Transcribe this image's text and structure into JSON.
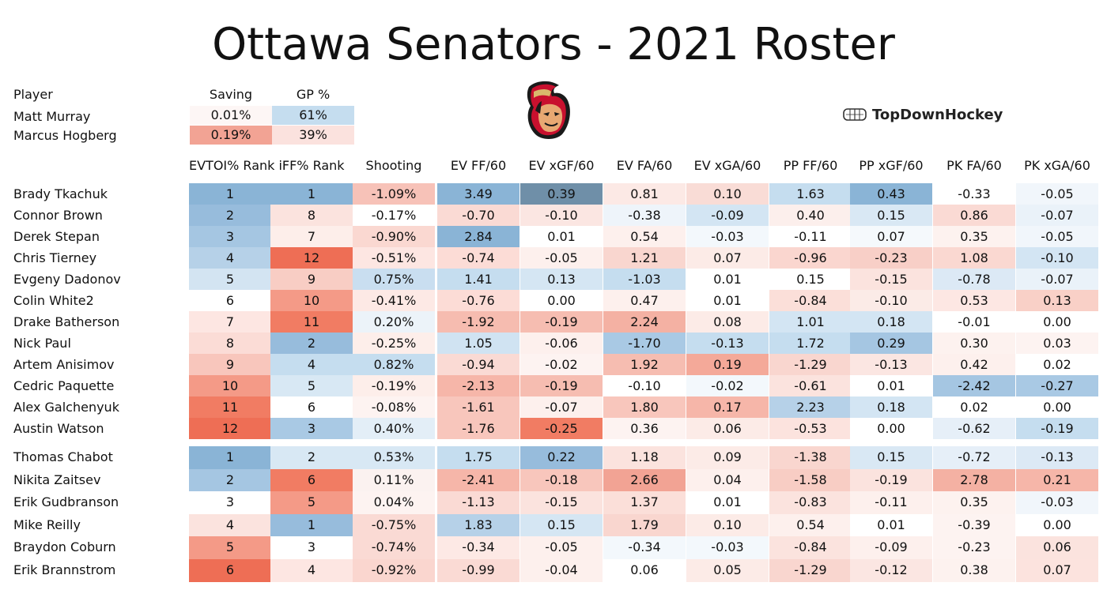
{
  "title": "Ottawa Senators - 2021 Roster",
  "brand": "TopDownHockey",
  "colors": {
    "blue": "#5b94c4",
    "red": "#ee6448",
    "white": "#ffffff"
  },
  "goalies": {
    "headers": [
      "Player",
      "Saving",
      "GP %"
    ],
    "rows": [
      {
        "name": "Matt Murray",
        "saving": "0.01%",
        "gp": "61%",
        "saving_color": "#fdf6f5",
        "gp_color": "#c5ddef"
      },
      {
        "name": "Marcus Hogberg",
        "saving": "0.19%",
        "gp": "39%",
        "saving_color": "#f2a394",
        "gp_color": "#fbe2de"
      }
    ]
  },
  "chart_data": {
    "type": "table",
    "title": "Ottawa Senators - 2021 Roster",
    "columns": [
      "EVTOI% Rank",
      "iFF% Rank",
      "Shooting",
      "EV FF/60",
      "EV xGF/60",
      "EV FA/60",
      "EV xGA/60",
      "PP FF/60",
      "PP xGF/60",
      "PK FA/60",
      "PK xGA/60"
    ],
    "forwards": [
      {
        "player": "Brady Tkachuk",
        "values": [
          "1",
          "1",
          "-1.09%",
          "3.49",
          "0.39",
          "0.81",
          "0.10",
          "1.63",
          "0.43",
          "-0.33",
          "-0.05"
        ],
        "colors": [
          "#8ab4d6",
          "#8ab4d6",
          "#f7c2b8",
          "#8ab4d6",
          "#6f8fa8",
          "#fce9e5",
          "#f9dcd6",
          "#c5ddef",
          "#8ab4d6",
          "#ffffff",
          "#f1f6fb"
        ]
      },
      {
        "player": "Connor Brown",
        "values": [
          "2",
          "8",
          "-0.17%",
          "-0.70",
          "-0.10",
          "-0.38",
          "-0.09",
          "0.40",
          "0.15",
          "0.86",
          "-0.07"
        ],
        "colors": [
          "#97bcdc",
          "#fbe3de",
          "#ffffff",
          "#fadad4",
          "#fbe6e2",
          "#eef4fa",
          "#d3e5f3",
          "#fcefec",
          "#d9e8f4",
          "#fadad4",
          "#eaf2f9"
        ]
      },
      {
        "player": "Derek Stepan",
        "values": [
          "3",
          "7",
          "-0.90%",
          "2.84",
          "0.01",
          "0.54",
          "-0.03",
          "-0.11",
          "0.07",
          "0.35",
          "-0.05"
        ],
        "colors": [
          "#a5c6e2",
          "#fdeeea",
          "#fad8d1",
          "#8ab4d6",
          "#ffffff",
          "#fdf0ed",
          "#f3f8fc",
          "#ffffff",
          "#f5f9fc",
          "#fdf2ef",
          "#f1f6fb"
        ]
      },
      {
        "player": "Chris Tierney",
        "values": [
          "4",
          "12",
          "-0.51%",
          "-0.74",
          "-0.05",
          "1.21",
          "0.07",
          "-0.96",
          "-0.23",
          "1.08",
          "-0.10"
        ],
        "colors": [
          "#b6d1e8",
          "#ee6e55",
          "#fde6e2",
          "#fcdcd6",
          "#fdf0ed",
          "#f9d6cf",
          "#fcebe7",
          "#fad6cf",
          "#f8cfc7",
          "#fad8d1",
          "#d3e5f3"
        ]
      },
      {
        "player": "Evgeny Dadonov",
        "values": [
          "5",
          "9",
          "0.75%",
          "1.41",
          "0.13",
          "-1.03",
          "0.01",
          "0.15",
          "-0.15",
          "-0.78",
          "-0.07"
        ],
        "colors": [
          "#d3e4f2",
          "#f8cdc4",
          "#c9def0",
          "#c5ddef",
          "#d5e6f3",
          "#c5ddef",
          "#ffffff",
          "#ffffff",
          "#fbe3de",
          "#dce9f5",
          "#eaf2f9"
        ]
      },
      {
        "player": "Colin White2",
        "values": [
          "6",
          "10",
          "-0.41%",
          "-0.76",
          "0.00",
          "0.47",
          "0.01",
          "-0.84",
          "-0.10",
          "0.53",
          "0.13"
        ],
        "colors": [
          "#ffffff",
          "#f49a87",
          "#fde9e5",
          "#fcdcd6",
          "#ffffff",
          "#fdf0ed",
          "#ffffff",
          "#fbdfd9",
          "#fbebe7",
          "#fde7e3",
          "#f9d0c7"
        ]
      },
      {
        "player": "Drake Batherson",
        "values": [
          "7",
          "11",
          "0.20%",
          "-1.92",
          "-0.19",
          "2.24",
          "0.08",
          "1.01",
          "0.18",
          "-0.01",
          "0.00"
        ],
        "colors": [
          "#fde6e2",
          "#f17c63",
          "#ecf3f9",
          "#f6bcb0",
          "#f6bdb1",
          "#f4b1a3",
          "#fcebe7",
          "#d3e5f3",
          "#d3e5f3",
          "#ffffff",
          "#ffffff"
        ]
      },
      {
        "player": "Nick Paul",
        "values": [
          "8",
          "2",
          "-0.25%",
          "1.05",
          "-0.06",
          "-1.70",
          "-0.13",
          "1.72",
          "0.29",
          "0.30",
          "0.03"
        ],
        "colors": [
          "#fbdcd6",
          "#97bcdc",
          "#fdeeea",
          "#d0e3f2",
          "#fdf0ed",
          "#a9c9e4",
          "#c5ddef",
          "#c5ddef",
          "#a5c6e2",
          "#fdf2ef",
          "#fdf3f1"
        ]
      },
      {
        "player": "Artem Anisimov",
        "values": [
          "9",
          "4",
          "0.82%",
          "-0.94",
          "-0.02",
          "1.92",
          "0.19",
          "-1.29",
          "-0.13",
          "0.42",
          "0.02"
        ],
        "colors": [
          "#f8c6bc",
          "#c5ddef",
          "#c5ddef",
          "#fadad4",
          "#fdf3f1",
          "#f6bdb1",
          "#f4a999",
          "#f9d6cf",
          "#fbe6e2",
          "#fdf0ed",
          "#ffffff"
        ]
      },
      {
        "player": "Cedric Paquette",
        "values": [
          "10",
          "5",
          "-0.19%",
          "-2.13",
          "-0.19",
          "-0.10",
          "-0.02",
          "-0.61",
          "0.01",
          "-2.42",
          "-0.27"
        ],
        "colors": [
          "#f49a87",
          "#d8e8f4",
          "#fdeeea",
          "#f6b6a9",
          "#f6bdb1",
          "#ffffff",
          "#f3f8fc",
          "#fbe3de",
          "#ffffff",
          "#a5c6e2",
          "#a9c9e4"
        ]
      },
      {
        "player": "Alex Galchenyuk",
        "values": [
          "11",
          "6",
          "-0.08%",
          "-1.61",
          "-0.07",
          "1.80",
          "0.17",
          "2.23",
          "0.18",
          "0.02",
          "0.00"
        ],
        "colors": [
          "#f17c63",
          "#ffffff",
          "#fdf3f1",
          "#f8c6bc",
          "#fdf0ed",
          "#f8c6bc",
          "#f6b6a9",
          "#b6d1e8",
          "#d3e5f3",
          "#ffffff",
          "#ffffff"
        ]
      },
      {
        "player": "Austin Watson",
        "values": [
          "12",
          "3",
          "0.40%",
          "-1.76",
          "-0.25",
          "0.36",
          "0.06",
          "-0.53",
          "0.00",
          "-0.62",
          "-0.19"
        ],
        "colors": [
          "#ee6e55",
          "#a9c9e4",
          "#e3eef7",
          "#f8c6bc",
          "#f17c63",
          "#fdf3f1",
          "#fcebe7",
          "#fce3de",
          "#ffffff",
          "#e6eff8",
          "#c5ddef"
        ]
      }
    ],
    "defense": [
      {
        "player": "Thomas Chabot",
        "values": [
          "1",
          "2",
          "0.53%",
          "1.75",
          "0.22",
          "1.18",
          "0.09",
          "-1.38",
          "0.15",
          "-0.72",
          "-0.13"
        ],
        "colors": [
          "#8ab4d6",
          "#d8e8f4",
          "#d8e8f4",
          "#c5ddef",
          "#97bcdc",
          "#fbe3de",
          "#fcebe7",
          "#f9d6cf",
          "#d9e8f4",
          "#e6eff8",
          "#dce9f5"
        ]
      },
      {
        "player": "Nikita Zaitsev",
        "values": [
          "2",
          "6",
          "0.11%",
          "-2.41",
          "-0.18",
          "2.66",
          "0.04",
          "-1.58",
          "-0.19",
          "2.78",
          "0.21"
        ],
        "colors": [
          "#a5c6e2",
          "#f17c63",
          "#fbf2f0",
          "#f6b6a9",
          "#f8c6bc",
          "#f2a394",
          "#fdf0ed",
          "#f8cdc4",
          "#fbe3de",
          "#f4b1a3",
          "#f6b6a9"
        ]
      },
      {
        "player": "Erik Gudbranson",
        "values": [
          "3",
          "5",
          "0.04%",
          "-1.13",
          "-0.15",
          "1.37",
          "0.01",
          "-0.83",
          "-0.11",
          "0.35",
          "-0.03"
        ],
        "colors": [
          "#ffffff",
          "#f49a87",
          "#fdf3f1",
          "#fadad4",
          "#fbe3de",
          "#fbdfd9",
          "#ffffff",
          "#fbe3de",
          "#fdf0ed",
          "#fdf2ef",
          "#f1f6fb"
        ]
      },
      {
        "player": "Mike Reilly",
        "values": [
          "4",
          "1",
          "-0.75%",
          "1.83",
          "0.15",
          "1.79",
          "0.10",
          "0.54",
          "0.01",
          "-0.39",
          "0.00"
        ],
        "colors": [
          "#fbe3de",
          "#97bcdc",
          "#fadad4",
          "#b6d1e8",
          "#d5e6f3",
          "#f9d6cf",
          "#fcebe7",
          "#fdf0ed",
          "#ffffff",
          "#fdf3f1",
          "#ffffff"
        ]
      },
      {
        "player": "Braydon Coburn",
        "values": [
          "5",
          "3",
          "-0.74%",
          "-0.34",
          "-0.05",
          "-0.34",
          "-0.03",
          "-0.84",
          "-0.09",
          "-0.23",
          "0.06"
        ],
        "colors": [
          "#f49a87",
          "#ffffff",
          "#fadad4",
          "#fde9e5",
          "#fdf0ed",
          "#f3f8fc",
          "#f3f8fc",
          "#fbe3de",
          "#fdf0ed",
          "#fdf3f1",
          "#fbe3de"
        ]
      },
      {
        "player": "Erik Brannstrom",
        "values": [
          "6",
          "4",
          "-0.92%",
          "-0.99",
          "-0.04",
          "0.06",
          "0.05",
          "-1.29",
          "-0.12",
          "0.38",
          "0.07"
        ],
        "colors": [
          "#ee6e55",
          "#fde6e2",
          "#fad6cf",
          "#fadad4",
          "#fdf0ed",
          "#ffffff",
          "#fcebe7",
          "#f9d6cf",
          "#fbe6e2",
          "#fdf2ef",
          "#fce3de"
        ]
      }
    ]
  }
}
